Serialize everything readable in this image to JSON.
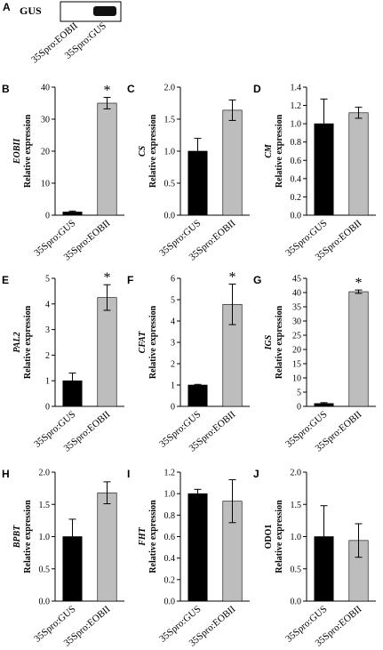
{
  "gel": {
    "panel": "A",
    "label": "GUS",
    "lanes": [
      "35Spro:EOBII",
      "35Spro:GUS"
    ]
  },
  "chart_data": [
    {
      "type": "bar",
      "panel": "B",
      "gene": "EOBII",
      "ylabel": "Relative expression",
      "categories": [
        "35Spro:GUS",
        "35Spro:EOBII"
      ],
      "values": [
        1,
        35
      ],
      "errors": [
        0.3,
        1.8
      ],
      "colors": [
        "#000000",
        "#bdbdbd"
      ],
      "ylim": [
        0,
        40
      ],
      "yticks": [
        0,
        10,
        20,
        30,
        40
      ],
      "annotation": "*"
    },
    {
      "type": "bar",
      "panel": "E",
      "gene": "PAL2",
      "ylabel": "Relative expression",
      "categories": [
        "35Spro:GUS",
        "35Spro:EOBII"
      ],
      "values": [
        1,
        4.25
      ],
      "errors": [
        0.3,
        0.5
      ],
      "colors": [
        "#000000",
        "#bdbdbd"
      ],
      "ylim": [
        0,
        5
      ],
      "yticks": [
        0,
        1,
        2,
        3,
        4,
        5
      ],
      "annotation": "*"
    },
    {
      "type": "bar",
      "panel": "H",
      "gene": "BPBT",
      "ylabel": "Relative expression",
      "categories": [
        "35Spro:GUS",
        "35Spro:EOBII"
      ],
      "values": [
        1,
        1.68
      ],
      "errors": [
        0.27,
        0.17
      ],
      "colors": [
        "#000000",
        "#bdbdbd"
      ],
      "ylim": [
        0,
        2
      ],
      "yticks": [
        {
          "value": 0,
          "label": "0.0"
        },
        0.5,
        {
          "value": 1,
          "label": "1.0"
        },
        1.5,
        {
          "value": 2,
          "label": "2.0"
        }
      ]
    },
    {
      "type": "bar",
      "panel": "C",
      "gene": "CS",
      "ylabel": "Relative expression",
      "categories": [
        "35Spro:GUS",
        "35Spro:EOBII"
      ],
      "values": [
        1,
        1.64
      ],
      "errors": [
        0.2,
        0.16
      ],
      "colors": [
        "#000000",
        "#bdbdbd"
      ],
      "ylim": [
        0,
        2
      ],
      "yticks": [
        {
          "value": 0,
          "label": "0.0"
        },
        0.5,
        {
          "value": 1,
          "label": "1.0"
        },
        1.5,
        {
          "value": 2,
          "label": "2.0"
        }
      ]
    },
    {
      "type": "bar",
      "panel": "F",
      "gene": "CFAT",
      "ylabel": "Relative expression",
      "categories": [
        "35Spro:GUS",
        "35Spro:EOBII"
      ],
      "values": [
        1,
        4.78
      ],
      "errors": [
        0.03,
        0.95
      ],
      "colors": [
        "#000000",
        "#bdbdbd"
      ],
      "ylim": [
        0,
        6
      ],
      "yticks": [
        0,
        1,
        2,
        3,
        4,
        5,
        6
      ],
      "annotation": "*"
    },
    {
      "type": "bar",
      "panel": "I",
      "gene": "FHT",
      "ylabel": "Relative expression",
      "categories": [
        "35Spro:GUS",
        "35Spro:EOBII"
      ],
      "values": [
        1,
        0.93
      ],
      "errors": [
        0.04,
        0.2
      ],
      "colors": [
        "#000000",
        "#bdbdbd"
      ],
      "ylim": [
        0,
        1.2
      ],
      "yticks": [
        {
          "value": 0,
          "label": "0.0"
        },
        0.2,
        0.4,
        0.6,
        0.8,
        {
          "value": 1,
          "label": "1.0"
        },
        1.2
      ]
    },
    {
      "type": "bar",
      "panel": "D",
      "gene": "CM",
      "ylabel": "Relative expression",
      "categories": [
        "35Spro:GUS",
        "35Spro:EOBII"
      ],
      "values": [
        1,
        1.12
      ],
      "errors": [
        0.27,
        0.06
      ],
      "colors": [
        "#000000",
        "#bdbdbd"
      ],
      "ylim": [
        0,
        1.4
      ],
      "yticks": [
        {
          "value": 0,
          "label": "0.0"
        },
        0.2,
        0.4,
        0.6,
        0.8,
        {
          "value": 1,
          "label": "1.0"
        },
        1.2,
        1.4
      ]
    },
    {
      "type": "bar",
      "panel": "G",
      "gene": "IGS",
      "ylabel": "Relative expression",
      "categories": [
        "35Spro:GUS",
        "35Spro:EOBII"
      ],
      "values": [
        1,
        40.3
      ],
      "errors": [
        0.3,
        0.6
      ],
      "colors": [
        "#000000",
        "#bdbdbd"
      ],
      "ylim": [
        0,
        45
      ],
      "yticks": [
        0,
        5,
        10,
        15,
        20,
        25,
        30,
        35,
        40,
        45
      ],
      "annotation": "*"
    },
    {
      "type": "bar",
      "panel": "J",
      "gene": "ODO1",
      "gene_style": "normal",
      "ylabel": "Relative expression",
      "categories": [
        "35Spro:GUS",
        "35Spro:EOBII"
      ],
      "values": [
        1,
        0.94
      ],
      "errors": [
        0.48,
        0.26
      ],
      "colors": [
        "#000000",
        "#bdbdbd"
      ],
      "ylim": [
        0,
        2
      ],
      "yticks": [
        {
          "value": 0,
          "label": "0.0"
        },
        0.5,
        {
          "value": 1,
          "label": "1.0"
        },
        1.5,
        {
          "value": 2,
          "label": "2.0"
        }
      ]
    }
  ]
}
